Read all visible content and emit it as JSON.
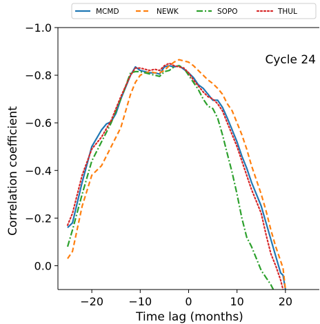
{
  "chart_data": {
    "type": "line",
    "title": "",
    "xlabel": "Time lag (months)",
    "ylabel": "Correlation coefficient",
    "xlim": [
      -27,
      27
    ],
    "ylim": [
      0.1,
      -1.0
    ],
    "y_inverted": true,
    "x_ticks": [
      -20,
      -10,
      0,
      10,
      20
    ],
    "x_tick_labels": [
      "−20",
      "−10",
      "0",
      "10",
      "20"
    ],
    "y_ticks": [
      -1.0,
      -0.8,
      -0.6,
      -0.4,
      -0.2,
      0.0
    ],
    "y_tick_labels": [
      "−1.0",
      "−0.8",
      "−0.6",
      "−0.4",
      "−0.2",
      "0.0"
    ],
    "grid": false,
    "legend_position": "top, outside plot",
    "annotation": "Cycle 24",
    "series": [
      {
        "name": "MCMD",
        "color": "#1f77b4",
        "dash": "solid",
        "x": [
          -25,
          -24,
          -22,
          -20,
          -18,
          -17,
          -16,
          -15,
          -14,
          -12,
          -11,
          -10,
          -9,
          -8,
          -7,
          -6,
          -5,
          -4,
          -3,
          -2,
          -1,
          0,
          1,
          2,
          3,
          4,
          5,
          6,
          7,
          8,
          9,
          10,
          11,
          12,
          13,
          14,
          15,
          16,
          17,
          18,
          19,
          19.5,
          20
        ],
        "y": [
          -0.16,
          -0.18,
          -0.35,
          -0.5,
          -0.57,
          -0.595,
          -0.605,
          -0.64,
          -0.7,
          -0.8,
          -0.835,
          -0.82,
          -0.815,
          -0.81,
          -0.81,
          -0.805,
          -0.835,
          -0.84,
          -0.835,
          -0.84,
          -0.825,
          -0.81,
          -0.79,
          -0.76,
          -0.745,
          -0.72,
          -0.695,
          -0.695,
          -0.665,
          -0.62,
          -0.57,
          -0.52,
          -0.46,
          -0.41,
          -0.35,
          -0.3,
          -0.25,
          -0.18,
          -0.11,
          -0.04,
          0.03,
          0.04,
          0.1
        ]
      },
      {
        "name": "NEWK",
        "color": "#ff7f0e",
        "dash": "dashed",
        "x": [
          -25,
          -24,
          -22,
          -20,
          -18,
          -16,
          -14,
          -12,
          -11,
          -10,
          -9,
          -8,
          -7,
          -6,
          -5,
          -4,
          -3,
          -2,
          -1,
          0,
          1,
          2,
          3,
          4,
          5,
          6,
          7,
          8,
          9,
          10,
          11,
          12,
          13,
          14,
          15,
          16,
          17,
          18,
          19,
          19.5,
          20
        ],
        "y": [
          -0.03,
          -0.06,
          -0.25,
          -0.38,
          -0.42,
          -0.5,
          -0.58,
          -0.72,
          -0.77,
          -0.8,
          -0.81,
          -0.815,
          -0.81,
          -0.81,
          -0.82,
          -0.84,
          -0.855,
          -0.865,
          -0.86,
          -0.855,
          -0.84,
          -0.82,
          -0.8,
          -0.78,
          -0.765,
          -0.745,
          -0.72,
          -0.68,
          -0.65,
          -0.6,
          -0.55,
          -0.49,
          -0.42,
          -0.36,
          -0.3,
          -0.23,
          -0.15,
          -0.08,
          -0.02,
          0.01,
          0.1
        ]
      },
      {
        "name": "SOPO",
        "color": "#2ca02c",
        "dash": "dashdot",
        "x": [
          -25,
          -24,
          -22,
          -20,
          -18,
          -16,
          -14,
          -12,
          -11,
          -10,
          -9,
          -8,
          -7,
          -6,
          -5,
          -4,
          -3,
          -2,
          -1,
          0,
          1,
          2,
          3,
          4,
          5,
          6,
          7,
          8,
          9,
          10,
          11,
          12,
          13,
          14,
          15,
          16,
          17,
          17.5
        ],
        "y": [
          -0.08,
          -0.15,
          -0.3,
          -0.44,
          -0.52,
          -0.6,
          -0.7,
          -0.81,
          -0.815,
          -0.815,
          -0.81,
          -0.805,
          -0.8,
          -0.795,
          -0.815,
          -0.82,
          -0.835,
          -0.84,
          -0.83,
          -0.8,
          -0.77,
          -0.74,
          -0.7,
          -0.67,
          -0.66,
          -0.62,
          -0.55,
          -0.47,
          -0.39,
          -0.3,
          -0.2,
          -0.12,
          -0.08,
          -0.03,
          0.02,
          0.05,
          0.08,
          0.1
        ]
      },
      {
        "name": "THUL",
        "color": "#d62728",
        "dash": "dotted",
        "x": [
          -25,
          -24,
          -22,
          -20,
          -18,
          -16,
          -14,
          -12,
          -11,
          -10,
          -9,
          -8,
          -7,
          -6,
          -5,
          -4,
          -3,
          -2,
          -1,
          0,
          1,
          2,
          3,
          4,
          5,
          6,
          7,
          8,
          9,
          10,
          11,
          12,
          13,
          14,
          15,
          16,
          17,
          18,
          19,
          19.5
        ],
        "y": [
          -0.17,
          -0.22,
          -0.38,
          -0.49,
          -0.54,
          -0.61,
          -0.71,
          -0.8,
          -0.83,
          -0.83,
          -0.825,
          -0.82,
          -0.825,
          -0.82,
          -0.84,
          -0.85,
          -0.84,
          -0.835,
          -0.83,
          -0.81,
          -0.78,
          -0.755,
          -0.73,
          -0.71,
          -0.7,
          -0.68,
          -0.65,
          -0.6,
          -0.55,
          -0.5,
          -0.44,
          -0.38,
          -0.32,
          -0.27,
          -0.22,
          -0.13,
          -0.05,
          0.0,
          0.06,
          0.1
        ]
      }
    ]
  }
}
